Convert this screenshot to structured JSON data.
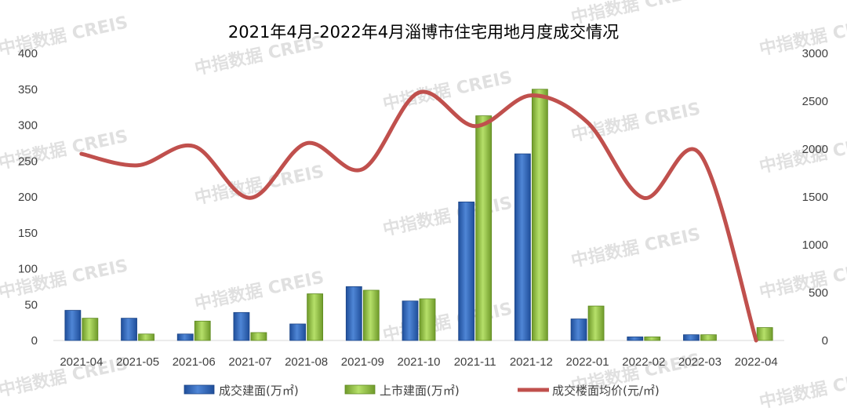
{
  "chart_data": {
    "type": "bar",
    "title": "2021年4月-2022年4月淄博市住宅用地月度成交情况",
    "categories": [
      "2021-04",
      "2021-05",
      "2021-06",
      "2021-07",
      "2021-08",
      "2021-09",
      "2021-10",
      "2021-11",
      "2021-12",
      "2022-01",
      "2022-02",
      "2022-03",
      "2022-04"
    ],
    "series": [
      {
        "name": "成交建面(万㎡)",
        "type": "bar",
        "axis": "left",
        "color": "#3a6fc4",
        "values": [
          42,
          31,
          9,
          39,
          23,
          75,
          55,
          193,
          260,
          30,
          5,
          8,
          0
        ]
      },
      {
        "name": "上市建面(万㎡)",
        "type": "bar",
        "axis": "left",
        "color": "#9ccc4a",
        "values": [
          31,
          9,
          27,
          11,
          65,
          70,
          58,
          313,
          350,
          48,
          5,
          8,
          18
        ]
      },
      {
        "name": "成交楼面均价(元/㎡)",
        "type": "line",
        "axis": "right",
        "color": "#c0504d",
        "values": [
          1950,
          1830,
          2030,
          1490,
          2060,
          1790,
          2590,
          2240,
          2560,
          2280,
          1490,
          1950,
          0
        ]
      }
    ],
    "y_left": {
      "ylim": [
        0,
        400
      ],
      "ticks": [
        0,
        50,
        100,
        150,
        200,
        250,
        300,
        350,
        400
      ]
    },
    "y_right": {
      "ylim": [
        0,
        3000
      ],
      "ticks": [
        0,
        500,
        1000,
        1500,
        2000,
        2500,
        3000
      ]
    },
    "grid": false,
    "legend": "bottom"
  },
  "watermark_text": "中指数据 CREIS"
}
